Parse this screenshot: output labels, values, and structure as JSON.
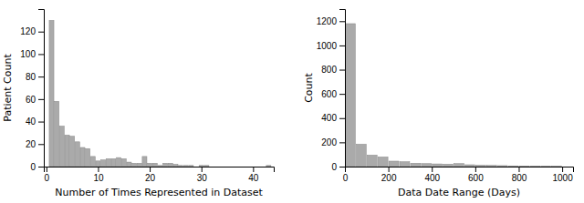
{
  "chart_data": [
    {
      "type": "bar",
      "xlabel": "Number of Times Represented in Dataset",
      "ylabel": "Patient Count",
      "color": "#aaaaaa",
      "xlim": [
        -0.5,
        44
      ],
      "ylim": [
        0,
        140
      ],
      "xticks": [
        0,
        10,
        20,
        30,
        40
      ],
      "yticks": [
        0,
        20,
        40,
        60,
        80,
        100,
        120
      ],
      "x": [
        1,
        2,
        3,
        4,
        5,
        6,
        7,
        8,
        9,
        10,
        11,
        12,
        13,
        14,
        15,
        16,
        17,
        18,
        19,
        20,
        21,
        22,
        23,
        24,
        25,
        26,
        27,
        28,
        30,
        31,
        43
      ],
      "values": [
        130,
        58,
        36,
        28,
        27,
        22,
        17,
        16,
        9,
        5,
        6,
        7,
        7,
        8,
        7,
        4,
        3,
        3,
        9,
        3,
        3,
        1,
        3,
        3,
        2,
        1,
        1,
        1,
        1,
        1,
        1
      ]
    },
    {
      "type": "histogram",
      "xlabel": "Data Date Range (Days)",
      "ylabel": "Count",
      "color": "#aaaaaa",
      "xlim": [
        0,
        1050
      ],
      "ylim": [
        0,
        1300
      ],
      "xticks": [
        0,
        200,
        400,
        600,
        800,
        1000
      ],
      "yticks": [
        0,
        200,
        400,
        600,
        800,
        1000,
        1200
      ],
      "bins": [
        0,
        50,
        100,
        150,
        200,
        250,
        300,
        350,
        400,
        450,
        500,
        550,
        600,
        650,
        700,
        750,
        800,
        850,
        900,
        950,
        1000
      ],
      "values": [
        1180,
        185,
        95,
        80,
        45,
        40,
        28,
        25,
        22,
        20,
        25,
        15,
        12,
        10,
        8,
        6,
        5,
        4,
        3,
        2
      ]
    }
  ]
}
